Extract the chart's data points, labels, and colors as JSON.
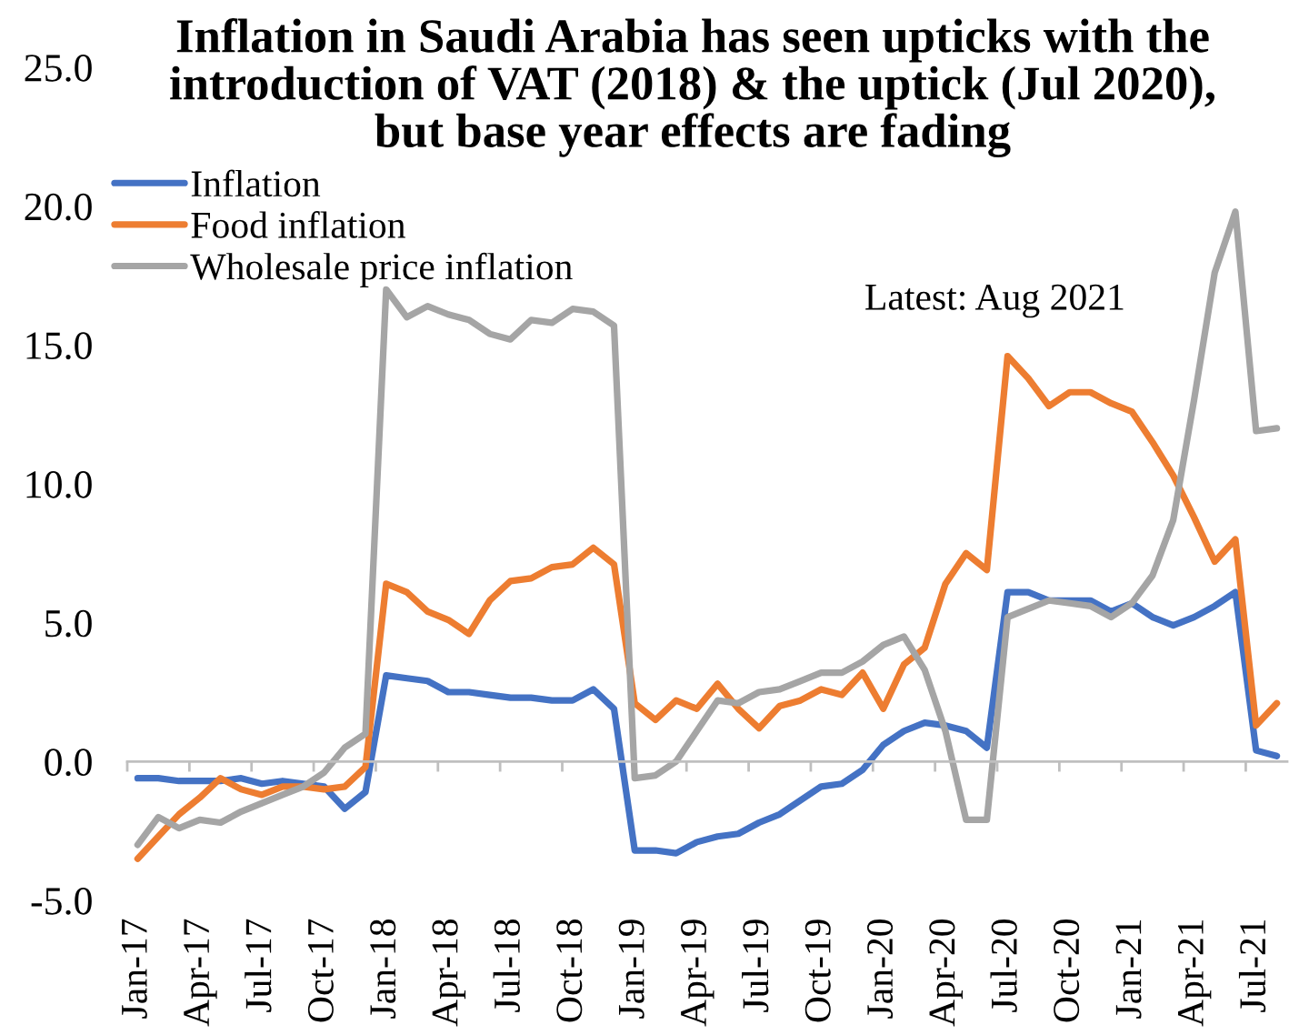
{
  "chart_data": {
    "type": "line",
    "title": "Inflation in Saudi Arabia has seen upticks with the\nintroduction of VAT (2018) & the uptick (Jul 2020),\nbut base year effects are fading",
    "annotations": [
      "Latest: Aug 2021"
    ],
    "categories": [
      "Jan-17",
      null,
      null,
      "Apr-17",
      null,
      null,
      "Jul-17",
      null,
      null,
      "Oct-17",
      null,
      null,
      "Jan-18",
      null,
      null,
      "Apr-18",
      null,
      null,
      "Jul-18",
      null,
      null,
      "Oct-18",
      null,
      null,
      "Jan-19",
      null,
      null,
      "Apr-19",
      null,
      null,
      "Jul-19",
      null,
      null,
      "Oct-19",
      null,
      null,
      "Jan-20",
      null,
      null,
      "Apr-20",
      null,
      null,
      "Jul-20",
      null,
      null,
      "Oct-20",
      null,
      null,
      "Jan-21",
      null,
      null,
      "Apr-21",
      null,
      null,
      "Jul-21",
      null
    ],
    "series": [
      {
        "name": "Inflation",
        "color": "#4472c4",
        "values": [
          -0.6,
          -0.6,
          -0.7,
          -0.7,
          -0.7,
          -0.6,
          -0.8,
          -0.7,
          -0.8,
          -0.9,
          -1.7,
          -1.1,
          3.1,
          3.0,
          2.9,
          2.5,
          2.5,
          2.4,
          2.3,
          2.3,
          2.2,
          2.2,
          2.6,
          1.9,
          -3.2,
          -3.2,
          -3.3,
          -2.9,
          -2.7,
          -2.6,
          -2.2,
          -1.9,
          -1.4,
          -0.9,
          -0.8,
          -0.3,
          0.6,
          1.1,
          1.4,
          1.3,
          1.1,
          0.5,
          6.1,
          6.1,
          5.8,
          5.8,
          5.8,
          5.4,
          5.7,
          5.2,
          4.9,
          5.2,
          5.6,
          6.1,
          0.4,
          0.2
        ]
      },
      {
        "name": "Food inflation",
        "color": "#ed7d31",
        "values": [
          -3.5,
          -2.7,
          -1.9,
          -1.3,
          -0.6,
          -1.0,
          -1.2,
          -0.9,
          -0.9,
          -1.0,
          -0.9,
          -0.2,
          6.4,
          6.1,
          5.4,
          5.1,
          4.6,
          5.8,
          6.5,
          6.6,
          7.0,
          7.1,
          7.7,
          7.1,
          2.1,
          1.5,
          2.2,
          1.9,
          2.8,
          1.9,
          1.2,
          2.0,
          2.2,
          2.6,
          2.4,
          3.2,
          1.9,
          3.5,
          4.1,
          6.4,
          7.5,
          6.9,
          14.6,
          13.8,
          12.8,
          13.3,
          13.3,
          12.9,
          12.6,
          11.5,
          10.3,
          8.8,
          7.2,
          8.0,
          1.3,
          2.1
        ]
      },
      {
        "name": "Wholesale price inflation",
        "color": "#a5a5a5",
        "values": [
          -3.0,
          -2.0,
          -2.4,
          -2.1,
          -2.2,
          -1.8,
          -1.5,
          -1.2,
          -0.9,
          -0.4,
          0.5,
          1.0,
          17.0,
          16.0,
          16.4,
          16.1,
          15.9,
          15.4,
          15.2,
          15.9,
          15.8,
          16.3,
          16.2,
          15.7,
          -0.6,
          -0.5,
          0.0,
          1.1,
          2.2,
          2.1,
          2.5,
          2.6,
          2.9,
          3.2,
          3.2,
          3.6,
          4.2,
          4.5,
          3.3,
          1.1,
          -2.1,
          -2.1,
          5.2,
          5.5,
          5.8,
          5.7,
          5.6,
          5.2,
          5.7,
          6.7,
          8.7,
          13.0,
          17.6,
          19.8,
          11.9,
          12.0
        ]
      }
    ],
    "ylim": [
      -5,
      25
    ],
    "yticks": [
      {
        "value": -5,
        "label": "-5.0"
      },
      {
        "value": 0,
        "label": "0.0"
      },
      {
        "value": 5,
        "label": "5.0"
      },
      {
        "value": 10,
        "label": "10.0"
      },
      {
        "value": 15,
        "label": "15.0"
      },
      {
        "value": 20,
        "label": "20.0"
      },
      {
        "value": 25,
        "label": "25.0"
      }
    ],
    "legend": "top left",
    "marker": "none",
    "line_style": "solid"
  }
}
